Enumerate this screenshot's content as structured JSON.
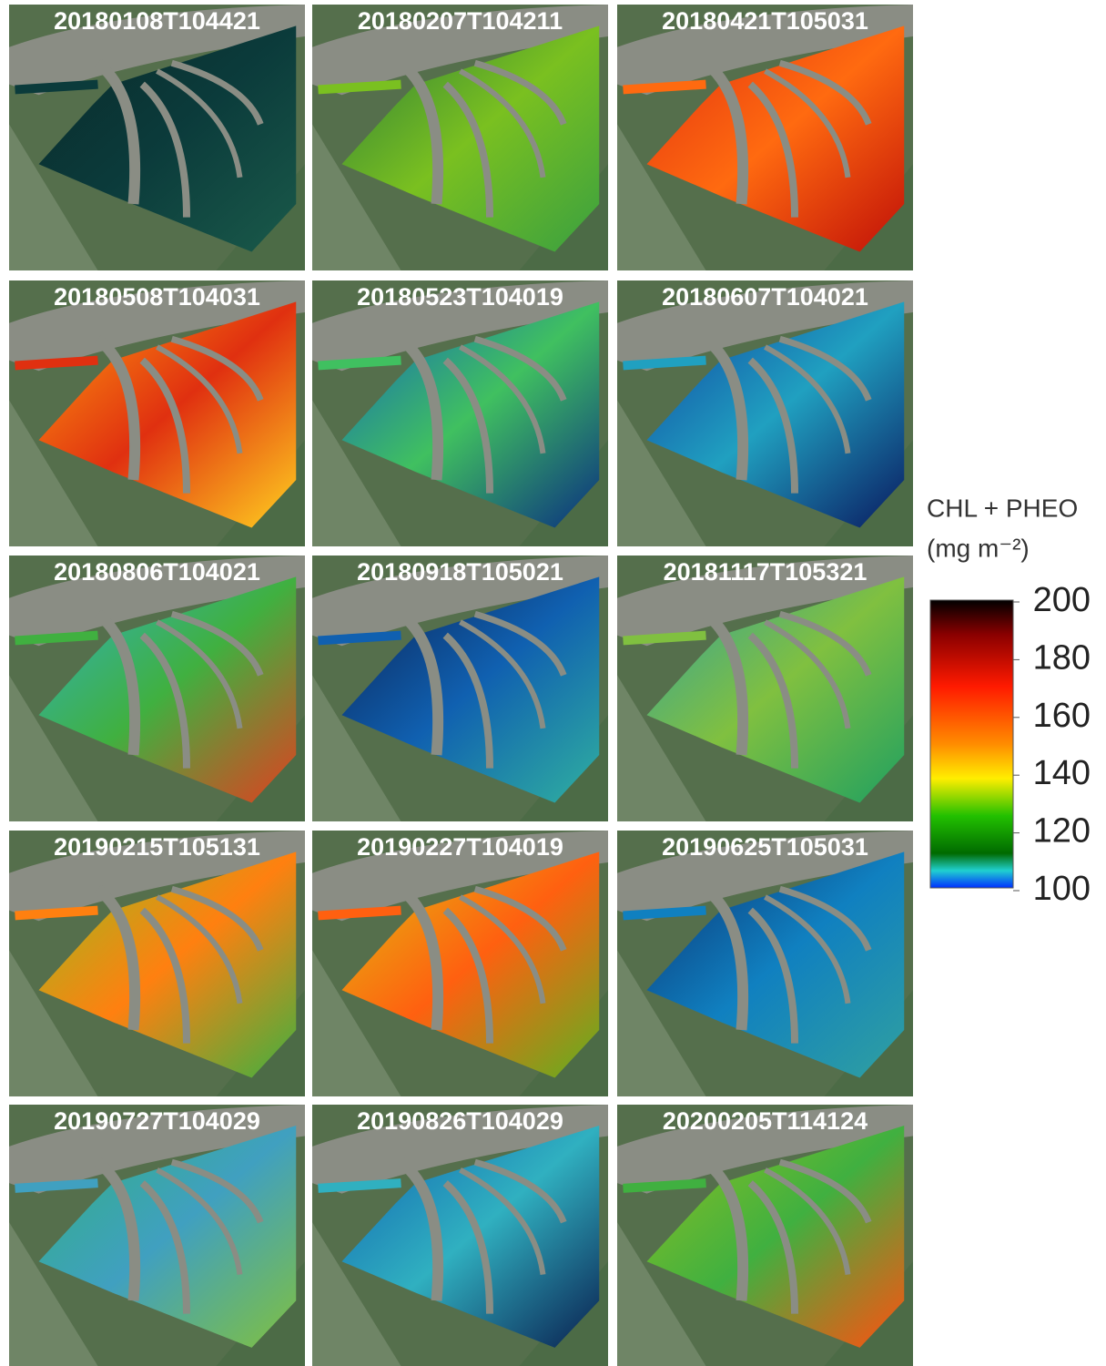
{
  "panels": [
    {
      "label": "20180108T104421"
    },
    {
      "label": "20180207T104211"
    },
    {
      "label": "20180421T105031"
    },
    {
      "label": "20180508T104031"
    },
    {
      "label": "20180523T104019"
    },
    {
      "label": "20180607T104021"
    },
    {
      "label": "20180806T104021"
    },
    {
      "label": "20180918T105021"
    },
    {
      "label": "20181117T105321"
    },
    {
      "label": "20190215T105131"
    },
    {
      "label": "20190227T104019"
    },
    {
      "label": "20190625T105031"
    },
    {
      "label": "20190727T104029"
    },
    {
      "label": "20190826T104029"
    },
    {
      "label": "20200205T114124"
    }
  ],
  "colorbar": {
    "title": "CHL + PHEO",
    "unit": "(mg m⁻²)",
    "ticks": [
      200,
      180,
      160,
      140,
      120,
      100
    ]
  }
}
